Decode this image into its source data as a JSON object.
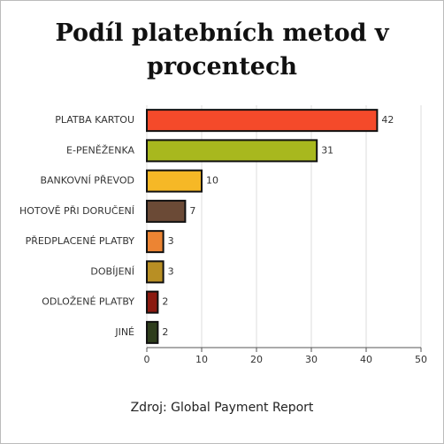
{
  "chart_data": {
    "type": "barh",
    "title": "Podíl platebních metod v procentech",
    "source": "Zdroj: Global Payment Report",
    "categories": [
      "PLATBA KARTOU",
      "E-PENĚŽENKA",
      "BANKOVNÍ PŘEVOD",
      "HOTOVĚ PŘI DORUČENÍ",
      "PŘEDPLACENÉ PLATBY",
      "DOBÍJENÍ",
      "ODLOŽENÉ PLATBY",
      "JINÉ"
    ],
    "values": [
      42,
      31,
      10,
      7,
      3,
      3,
      2,
      2
    ],
    "colors": [
      "#f44a2a",
      "#a8b81e",
      "#f6b826",
      "#6b4a36",
      "#ec8433",
      "#b88f24",
      "#8b1a10",
      "#2e3d1c"
    ],
    "xlim": [
      0,
      50
    ],
    "xticks": [
      0,
      10,
      20,
      30,
      40,
      50
    ],
    "grid": true
  }
}
